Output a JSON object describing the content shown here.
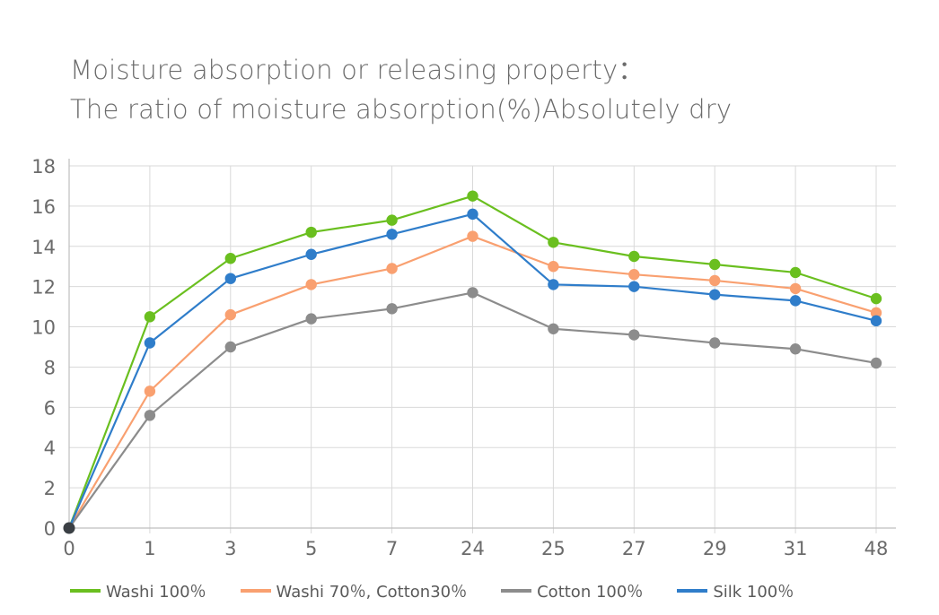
{
  "chart_data": {
    "type": "line",
    "title": "Moisture absorption or releasing property：",
    "subtitle": "The ratio of moisture absorption(%)Absolutely dry",
    "xlabel": "",
    "ylabel": "",
    "categories": [
      "0",
      "1",
      "3",
      "5",
      "7",
      "24",
      "25",
      "27",
      "29",
      "31",
      "48"
    ],
    "y_ticks": [
      "0",
      "2",
      "4",
      "6",
      "8",
      "10",
      "12",
      "14",
      "16",
      "18"
    ],
    "ylim": [
      0,
      18
    ],
    "grid": true,
    "legend_position": "bottom",
    "series": [
      {
        "name": "Washi 100％",
        "color": "#6abf1f",
        "values": [
          0,
          10.5,
          13.4,
          14.7,
          15.3,
          16.5,
          14.2,
          13.5,
          13.1,
          12.7,
          11.4
        ]
      },
      {
        "name": "Washi 70％, Cotton30％",
        "color": "#f9a070",
        "values": [
          0,
          6.8,
          10.6,
          12.1,
          12.9,
          14.5,
          13.0,
          12.6,
          12.3,
          11.9,
          10.7
        ]
      },
      {
        "name": "Cotton 100％",
        "color": "#8c8c8c",
        "values": [
          0,
          5.6,
          9.0,
          10.4,
          10.9,
          11.7,
          9.9,
          9.6,
          9.2,
          8.9,
          8.2
        ]
      },
      {
        "name": "Silk 100％",
        "color": "#2f7dca",
        "values": [
          0,
          9.2,
          12.4,
          13.6,
          14.6,
          15.6,
          12.1,
          12.0,
          11.6,
          11.3,
          10.3
        ]
      }
    ]
  }
}
